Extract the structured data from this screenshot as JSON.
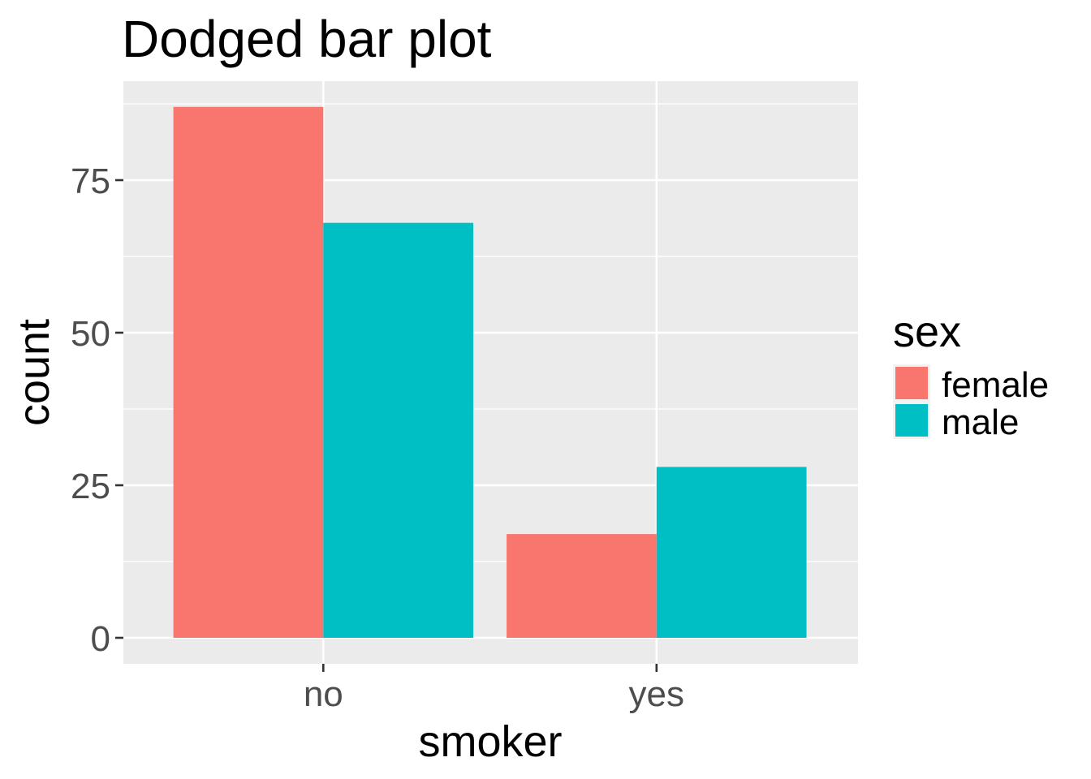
{
  "chart_data": {
    "type": "bar",
    "title": "Dodged bar plot",
    "xlabel": "smoker",
    "ylabel": "count",
    "categories": [
      "no",
      "yes"
    ],
    "series": [
      {
        "name": "female",
        "values": [
          87,
          17
        ]
      },
      {
        "name": "male",
        "values": [
          68,
          28
        ]
      }
    ],
    "ylim": [
      0,
      91
    ],
    "yticks": [
      0,
      25,
      50,
      75
    ],
    "ytick_labels": [
      "0",
      "25",
      "50",
      "75"
    ],
    "grid": true,
    "legend": {
      "title": "sex",
      "position": "right",
      "labels": [
        "female",
        "male"
      ]
    },
    "colors": {
      "female": "#F8766D",
      "male": "#00BFC4",
      "panel": "#EBEBEB",
      "grid": "#FFFFFF"
    }
  }
}
